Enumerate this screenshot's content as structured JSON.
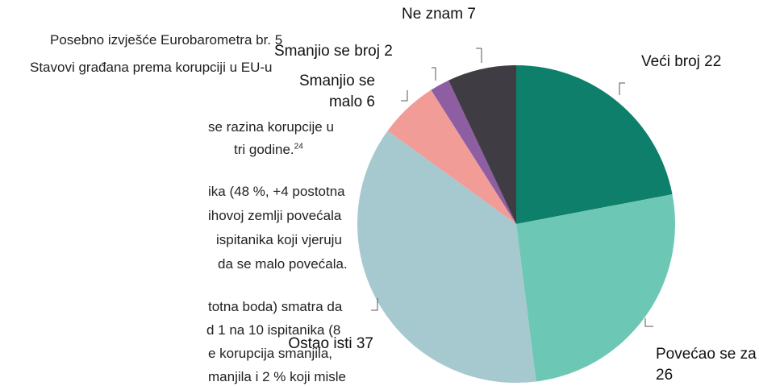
{
  "document": {
    "header": [
      "Posebno izvješće Eurobarometra br. 5",
      "Stavovi građana prema korupciji u EU-u"
    ],
    "lines": [
      "se razina korupcije u",
      "tri godine.",
      "ika (48 %, +4 postotna",
      "ihovoj zemlji povećala",
      "ispitanika koji vjeruju",
      "da se malo povećala.",
      "totna boda) smatra da",
      "d 1 na 10 ispitanika (8",
      "e korupcija smanjila,",
      "manjila i 2 % koji misle"
    ],
    "footnote": "24"
  },
  "chart_data": {
    "type": "pie",
    "categories": [
      "Veći broj",
      "Povećao se za",
      "Ostao isti",
      "Smanjio se malo",
      "Smanjio se broj",
      "Ne znam"
    ],
    "values": [
      22,
      26,
      37,
      6,
      2,
      7
    ],
    "colors": [
      "#0e7f6a",
      "#6dc7b5",
      "#a6c9cf",
      "#f29c98",
      "#8e5ea2",
      "#3f3d43"
    ]
  }
}
